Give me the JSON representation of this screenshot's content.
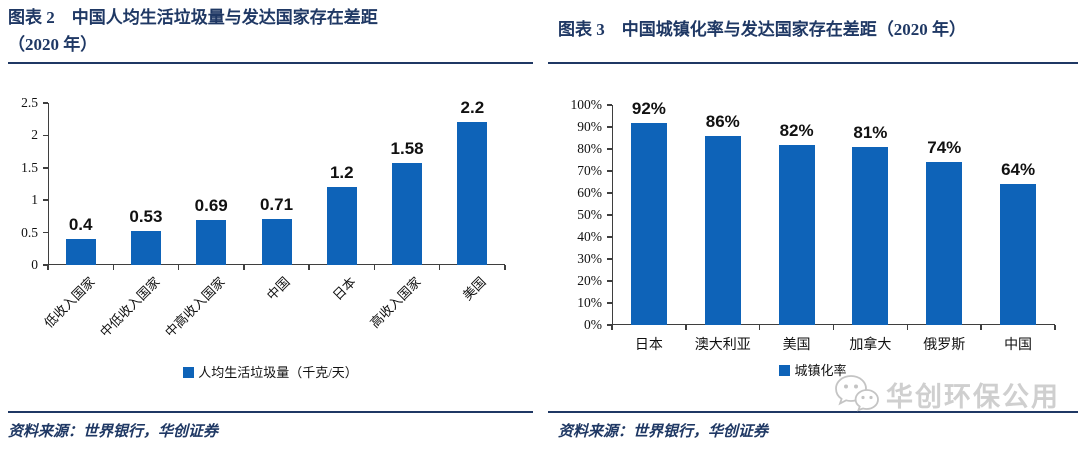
{
  "figures": [
    {
      "id": "figure-2",
      "title_line1": "图表 2　中国人均生活垃圾量与发达国家存在差距",
      "title_line2": "（2020 年）",
      "source": "资料来源：世界银行，华创证券"
    },
    {
      "id": "figure-3",
      "title_line1": "图表 3　中国城镇化率与发达国家存在差距（2020 年）",
      "title_line2": "",
      "source": "资料来源：世界银行，华创证券"
    }
  ],
  "chart_data": [
    {
      "type": "bar",
      "title": "图表 2 中国人均生活垃圾量与发达国家存在差距（2020 年）",
      "categories": [
        "低收入国家",
        "中低收入国家",
        "中高收入国家",
        "中国",
        "日本",
        "高收入国家",
        "美国"
      ],
      "values": [
        0.4,
        0.53,
        0.69,
        0.71,
        1.2,
        1.58,
        2.2
      ],
      "value_labels": [
        "0.4",
        "0.53",
        "0.69",
        "0.71",
        "1.2",
        "1.58",
        "2.2"
      ],
      "legend": "人均生活垃圾量（千克/天）",
      "xlabel": "",
      "ylabel": "",
      "ylim": [
        0,
        2.5
      ],
      "ytick_labels": [
        "0",
        "0.5",
        "1",
        "1.5",
        "2",
        "2.5"
      ],
      "grid": false,
      "legend_position": "bottom-center",
      "xlabel_rotation_deg": -45,
      "bar_color": "#0e63b8"
    },
    {
      "type": "bar",
      "title": "图表 3 中国城镇化率与发达国家存在差距（2020 年）",
      "categories": [
        "日本",
        "澳大利亚",
        "美国",
        "加拿大",
        "俄罗斯",
        "中国"
      ],
      "values": [
        92,
        86,
        82,
        81,
        74,
        64
      ],
      "value_labels": [
        "92%",
        "86%",
        "82%",
        "81%",
        "74%",
        "64%"
      ],
      "legend": "城镇化率",
      "xlabel": "",
      "ylabel": "",
      "ylim": [
        0,
        100
      ],
      "ytick_labels": [
        "0%",
        "10%",
        "20%",
        "30%",
        "40%",
        "50%",
        "60%",
        "70%",
        "80%",
        "90%",
        "100%"
      ],
      "grid": false,
      "legend_position": "bottom-center",
      "xlabel_rotation_deg": 0,
      "bar_color": "#0e63b8"
    }
  ],
  "watermark": {
    "text": "华创环保公用",
    "icon": "wechat-logo-icon"
  },
  "colors": {
    "accent_navy": "#1f3864",
    "bar_blue": "#0e63b8",
    "axis_gray": "#3f3f3f",
    "watermark_gray": "#cfcfcf",
    "label_black": "#111111"
  }
}
